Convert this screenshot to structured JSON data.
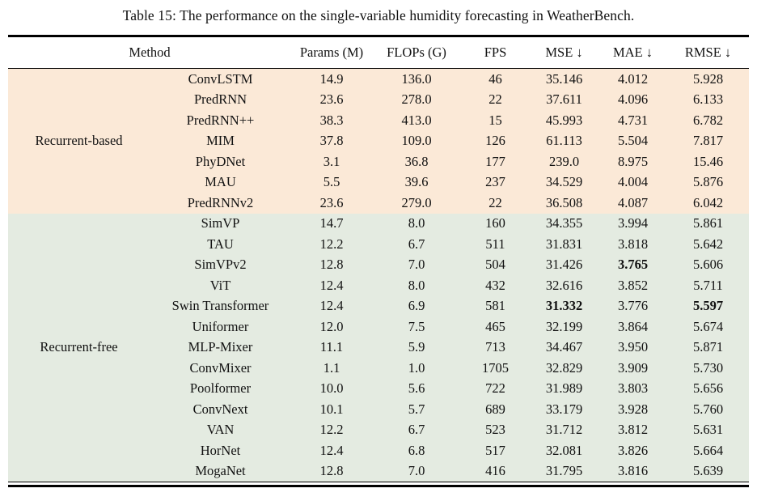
{
  "title": "Table 15: The performance on the single-variable humidity forecasting in WeatherBench.",
  "table": {
    "headers": {
      "method": "Method",
      "params": "Params (M)",
      "flops": "FLOPs (G)",
      "fps": "FPS",
      "mse": "MSE ↓",
      "mae": "MAE ↓",
      "rmse": "RMSE ↓"
    },
    "groups": [
      {
        "label": "Recurrent-based",
        "bg_color": "#fbe9d7",
        "rows": [
          {
            "method": "ConvLSTM",
            "params": "14.9",
            "flops": "136.0",
            "fps": "46",
            "mse": "35.146",
            "mae": "4.012",
            "rmse": "5.928",
            "bold": []
          },
          {
            "method": "PredRNN",
            "params": "23.6",
            "flops": "278.0",
            "fps": "22",
            "mse": "37.611",
            "mae": "4.096",
            "rmse": "6.133",
            "bold": []
          },
          {
            "method": "PredRNN++",
            "params": "38.3",
            "flops": "413.0",
            "fps": "15",
            "mse": "45.993",
            "mae": "4.731",
            "rmse": "6.782",
            "bold": []
          },
          {
            "method": "MIM",
            "params": "37.8",
            "flops": "109.0",
            "fps": "126",
            "mse": "61.113",
            "mae": "5.504",
            "rmse": "7.817",
            "bold": []
          },
          {
            "method": "PhyDNet",
            "params": "3.1",
            "flops": "36.8",
            "fps": "177",
            "mse": "239.0",
            "mae": "8.975",
            "rmse": "15.46",
            "bold": []
          },
          {
            "method": "MAU",
            "params": "5.5",
            "flops": "39.6",
            "fps": "237",
            "mse": "34.529",
            "mae": "4.004",
            "rmse": "5.876",
            "bold": []
          },
          {
            "method": "PredRNNv2",
            "params": "23.6",
            "flops": "279.0",
            "fps": "22",
            "mse": "36.508",
            "mae": "4.087",
            "rmse": "6.042",
            "bold": []
          }
        ]
      },
      {
        "label": "Recurrent-free",
        "bg_color": "#e4ebe1",
        "rows": [
          {
            "method": "SimVP",
            "params": "14.7",
            "flops": "8.0",
            "fps": "160",
            "mse": "34.355",
            "mae": "3.994",
            "rmse": "5.861",
            "bold": []
          },
          {
            "method": "TAU",
            "params": "12.2",
            "flops": "6.7",
            "fps": "511",
            "mse": "31.831",
            "mae": "3.818",
            "rmse": "5.642",
            "bold": []
          },
          {
            "method": "SimVPv2",
            "params": "12.8",
            "flops": "7.0",
            "fps": "504",
            "mse": "31.426",
            "mae": "3.765",
            "rmse": "5.606",
            "bold": [
              "mae"
            ]
          },
          {
            "method": "ViT",
            "params": "12.4",
            "flops": "8.0",
            "fps": "432",
            "mse": "32.616",
            "mae": "3.852",
            "rmse": "5.711",
            "bold": []
          },
          {
            "method": "Swin Transformer",
            "params": "12.4",
            "flops": "6.9",
            "fps": "581",
            "mse": "31.332",
            "mae": "3.776",
            "rmse": "5.597",
            "bold": [
              "mse",
              "rmse"
            ]
          },
          {
            "method": "Uniformer",
            "params": "12.0",
            "flops": "7.5",
            "fps": "465",
            "mse": "32.199",
            "mae": "3.864",
            "rmse": "5.674",
            "bold": []
          },
          {
            "method": "MLP-Mixer",
            "params": "11.1",
            "flops": "5.9",
            "fps": "713",
            "mse": "34.467",
            "mae": "3.950",
            "rmse": "5.871",
            "bold": []
          },
          {
            "method": "ConvMixer",
            "params": "1.1",
            "flops": "1.0",
            "fps": "1705",
            "mse": "32.829",
            "mae": "3.909",
            "rmse": "5.730",
            "bold": []
          },
          {
            "method": "Poolformer",
            "params": "10.0",
            "flops": "5.6",
            "fps": "722",
            "mse": "31.989",
            "mae": "3.803",
            "rmse": "5.656",
            "bold": []
          },
          {
            "method": "ConvNext",
            "params": "10.1",
            "flops": "5.7",
            "fps": "689",
            "mse": "33.179",
            "mae": "3.928",
            "rmse": "5.760",
            "bold": []
          },
          {
            "method": "VAN",
            "params": "12.2",
            "flops": "6.7",
            "fps": "523",
            "mse": "31.712",
            "mae": "3.812",
            "rmse": "5.631",
            "bold": []
          },
          {
            "method": "HorNet",
            "params": "12.4",
            "flops": "6.8",
            "fps": "517",
            "mse": "32.081",
            "mae": "3.826",
            "rmse": "5.664",
            "bold": []
          },
          {
            "method": "MogaNet",
            "params": "12.8",
            "flops": "7.0",
            "fps": "416",
            "mse": "31.795",
            "mae": "3.816",
            "rmse": "5.639",
            "bold": []
          }
        ]
      }
    ]
  }
}
